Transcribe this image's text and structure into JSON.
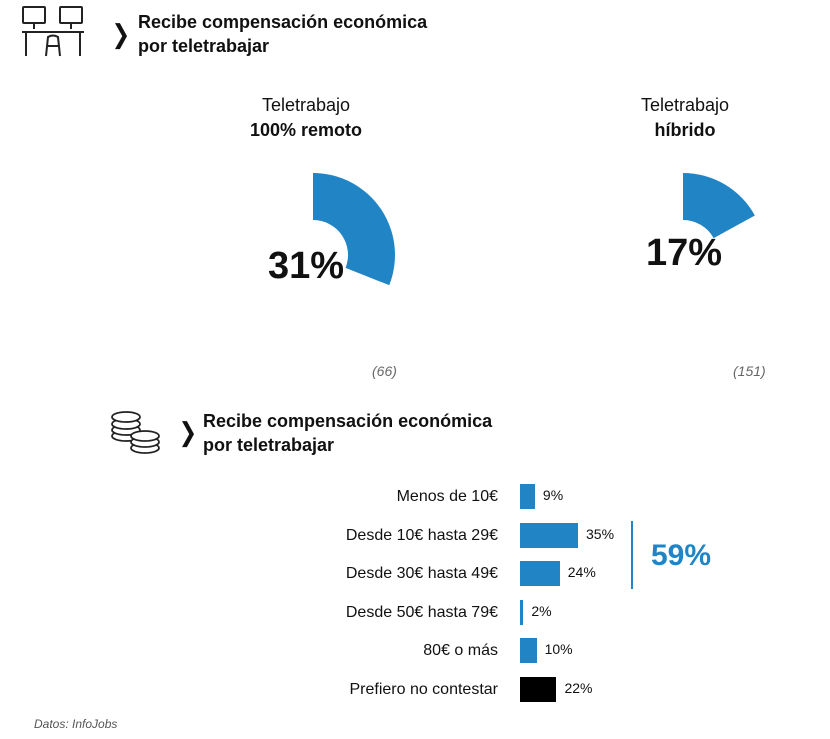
{
  "section1": {
    "title_line1": "Recibe compensación económica",
    "title_line2": "por teletrabajar",
    "icon": "desks-workstations-icon"
  },
  "section2": {
    "title_line1": "Recibe compensación económica",
    "title_line2": "por teletrabajar",
    "icon": "coins-stack-icon"
  },
  "colors": {
    "accent": "#2185c5",
    "negative": "#000000",
    "text": "#111111"
  },
  "chart_data": [
    {
      "type": "pie",
      "title": "Teletrabajo 100% remoto",
      "title_line1": "Teletrabajo",
      "title_line2": "100% remoto",
      "value": 31,
      "value_label": "31%",
      "sample": "(66)"
    },
    {
      "type": "pie",
      "title": "Teletrabajo híbrido",
      "title_line1": "Teletrabajo",
      "title_line2": "híbrido",
      "value": 17,
      "value_label": "17%",
      "sample": "(151)"
    },
    {
      "type": "bar",
      "orientation": "horizontal",
      "categories": [
        "Menos de 10€",
        "Desde 10€ hasta 29€",
        "Desde 30€ hasta 49€",
        "Desde 50€ hasta 79€",
        "80€ o más",
        "Prefiero no contestar"
      ],
      "values": [
        9,
        35,
        24,
        2,
        10,
        22
      ],
      "value_labels": [
        "9%",
        "35%",
        "24%",
        "2%",
        "10%",
        "22%"
      ],
      "bar_colors": [
        "#2185c5",
        "#2185c5",
        "#2185c5",
        "#2185c5",
        "#2185c5",
        "#000000"
      ],
      "bracket": {
        "from_index": 1,
        "to_index": 2,
        "label": "59%"
      }
    }
  ],
  "source": "Datos: InfoJobs"
}
